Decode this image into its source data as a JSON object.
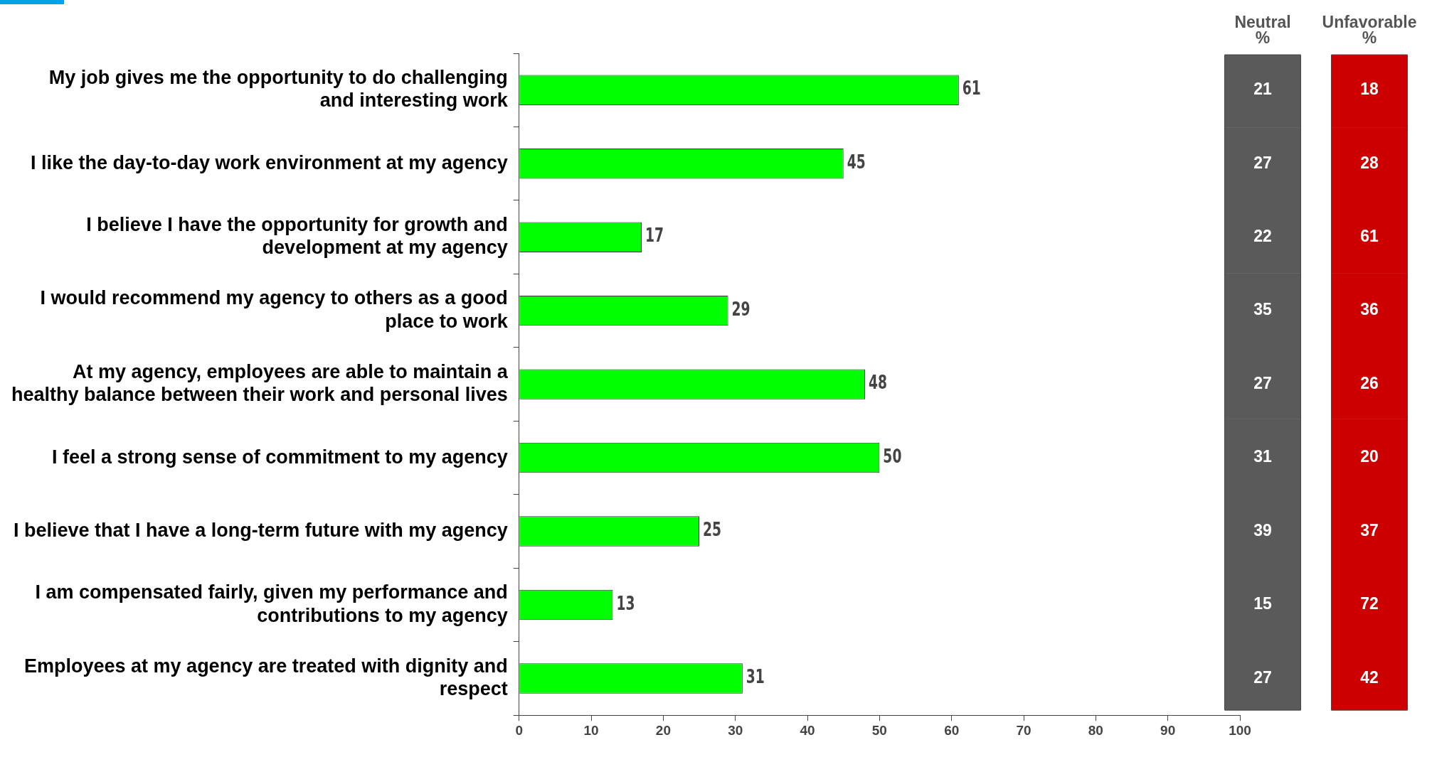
{
  "chart_data": [
    {
      "type": "bar",
      "orientation": "horizontal",
      "categories": [
        "My job gives me the opportunity to do challenging and interesting work",
        "I like the day-to-day work environment at my agency",
        "I believe I have the opportunity for growth and development at my agency",
        "I would recommend my agency to others as a good place to work",
        "At my agency, employees are able to maintain a healthy balance between their work and personal lives",
        "I feel a strong sense of commitment to my agency",
        "I believe that I have a long-term future with my agency",
        "I am compensated fairly, given my performance and contributions to my agency",
        "Employees at my agency are treated with dignity and respect"
      ],
      "values": [
        61,
        45,
        17,
        29,
        48,
        50,
        25,
        13,
        31
      ],
      "color": "#00ff00",
      "data_labels": true,
      "xlim": [
        0,
        100
      ],
      "xticks": [
        0,
        10,
        20,
        30,
        40,
        50,
        60,
        70,
        80,
        90,
        100
      ],
      "grid": false,
      "legend": false
    },
    {
      "type": "heatmap",
      "data_labels": true,
      "categories": [
        "Neutral %",
        "Unfavorable %"
      ],
      "colors": [
        "#5a5a5a",
        "#cc0000"
      ],
      "y_categories": [
        null,
        null,
        null,
        null,
        null,
        null,
        null,
        null,
        null
      ],
      "cells": [
        [
          21,
          18
        ],
        [
          27,
          28
        ],
        [
          22,
          61
        ],
        [
          35,
          36
        ],
        [
          27,
          26
        ],
        [
          31,
          20
        ],
        [
          39,
          37
        ],
        [
          15,
          72
        ],
        [
          27,
          42
        ]
      ]
    }
  ]
}
